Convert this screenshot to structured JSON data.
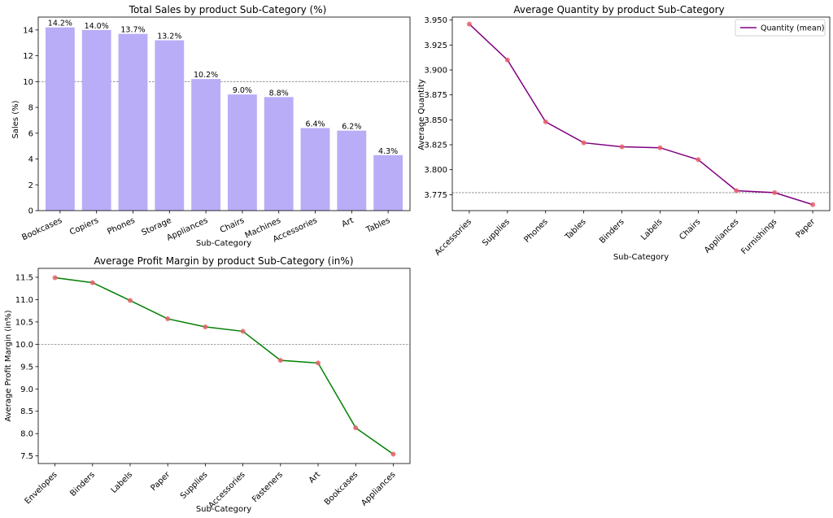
{
  "chart_data": [
    {
      "type": "bar",
      "title": "Total Sales by product Sub-Category (%)",
      "xlabel": "Sub-Category",
      "ylabel": "Sales (%)",
      "categories": [
        "Bookcases",
        "Copiers",
        "Phones",
        "Storage",
        "Appliances",
        "Chairs",
        "Machines",
        "Accessories",
        "Art",
        "Tables"
      ],
      "values": [
        14.2,
        14.0,
        13.7,
        13.2,
        10.2,
        9.0,
        8.8,
        6.4,
        6.2,
        4.3
      ],
      "data_labels": [
        "14.2%",
        "14.0%",
        "13.7%",
        "13.2%",
        "10.2%",
        "9.0%",
        "8.8%",
        "6.4%",
        "6.2%",
        "4.3%"
      ],
      "ylim": [
        0,
        15.0
      ],
      "yticks": [
        0,
        2,
        4,
        6,
        8,
        10,
        12,
        14
      ],
      "ytick_labels": [
        "0",
        "2",
        "4",
        "6",
        "8",
        "10",
        "12",
        "14"
      ],
      "reference_line": 10,
      "bar_color": "#b9adf7",
      "ref_line_color": "#808080",
      "grid": false
    },
    {
      "type": "line",
      "title": "Average Quantity by product Sub-Category",
      "xlabel": "Sub-Category",
      "ylabel": "Average Quantity",
      "categories": [
        "Accessories",
        "Supplies",
        "Phones",
        "Tables",
        "Binders",
        "Labels",
        "Chairs",
        "Appliances",
        "Furnishings",
        "Paper"
      ],
      "series": [
        {
          "name": "Quantity (mean)",
          "values": [
            3.946,
            3.91,
            3.848,
            3.827,
            3.823,
            3.822,
            3.81,
            3.779,
            3.777,
            3.765
          ]
        }
      ],
      "ylim": [
        3.759,
        3.953
      ],
      "yticks": [
        3.775,
        3.8,
        3.825,
        3.85,
        3.875,
        3.9,
        3.925,
        3.95
      ],
      "ytick_labels": [
        "3.775",
        "3.800",
        "3.825",
        "3.850",
        "3.875",
        "3.900",
        "3.925",
        "3.950"
      ],
      "reference_line": 3.777,
      "line_color": "#800080",
      "marker_color": "#e8606a",
      "ref_line_color": "#808080",
      "legend_position": "top-right",
      "grid": false
    },
    {
      "type": "line",
      "title": "Average Profit Margin by product Sub-Category (in%)",
      "xlabel": "Sub-Category",
      "ylabel": "Average Profit Margin (in%)",
      "categories": [
        "Envelopes",
        "Binders",
        "Labels",
        "Paper",
        "Supplies",
        "Accessories",
        "Fasteners",
        "Art",
        "Bookcases",
        "Appliances"
      ],
      "series": [
        {
          "values": [
            11.49,
            11.38,
            10.98,
            10.57,
            10.39,
            10.29,
            9.64,
            9.58,
            8.13,
            7.54
          ]
        }
      ],
      "ylim": [
        7.33,
        11.7
      ],
      "yticks": [
        7.5,
        8.0,
        8.5,
        9.0,
        9.5,
        10.0,
        10.5,
        11.0,
        11.5
      ],
      "ytick_labels": [
        "7.5",
        "8.0",
        "8.5",
        "9.0",
        "9.5",
        "10.0",
        "10.5",
        "11.0",
        "11.5"
      ],
      "reference_line": 10,
      "line_color": "#008000",
      "marker_color": "#e8606a",
      "ref_line_color": "#808080",
      "grid": false
    }
  ]
}
